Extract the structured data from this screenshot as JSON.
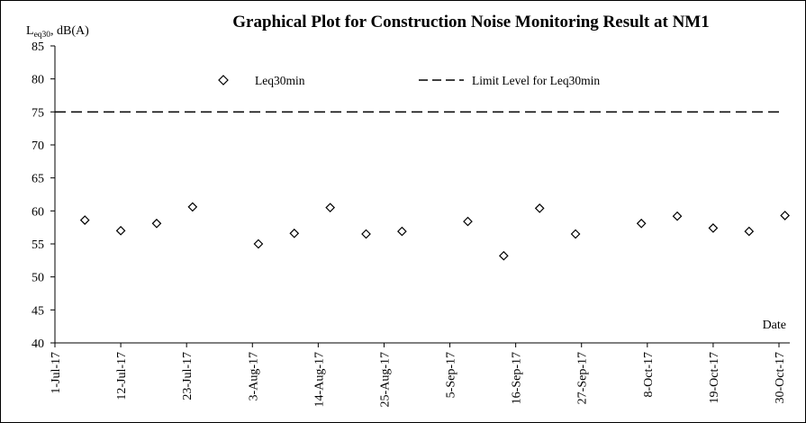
{
  "chart_data": {
    "type": "scatter",
    "title": "Graphical Plot for Construction Noise Monitoring Result at NM1",
    "ylabel": {
      "main": "L",
      "sub": "eq30",
      "rest": ", dB(A)"
    },
    "xlabel": "Date",
    "ylim": [
      40,
      85
    ],
    "yticks": [
      40,
      45,
      50,
      55,
      60,
      65,
      70,
      75,
      80,
      85
    ],
    "xlim": [
      "2017-07-01",
      "2017-10-30"
    ],
    "xtick_dates": [
      "2017-07-01",
      "2017-07-12",
      "2017-07-23",
      "2017-08-03",
      "2017-08-14",
      "2017-08-25",
      "2017-09-05",
      "2017-09-16",
      "2017-09-27",
      "2017-10-08",
      "2017-10-19",
      "2017-10-30"
    ],
    "xtick_labels": [
      "1-Jul-17",
      "12-Jul-17",
      "23-Jul-17",
      "3-Aug-17",
      "14-Aug-17",
      "25-Aug-17",
      "5-Sep-17",
      "16-Sep-17",
      "27-Sep-17",
      "8-Oct-17",
      "19-Oct-17",
      "30-Oct-17"
    ],
    "grid": false,
    "legend": {
      "placement": "top-center"
    },
    "series": [
      {
        "name": "Leq30min",
        "marker": "diamond-open",
        "color": "#000000",
        "points": [
          {
            "x": "2017-07-06",
            "y": 58.6
          },
          {
            "x": "2017-07-12",
            "y": 57.0
          },
          {
            "x": "2017-07-18",
            "y": 58.1
          },
          {
            "x": "2017-07-24",
            "y": 60.6
          },
          {
            "x": "2017-08-04",
            "y": 55.0
          },
          {
            "x": "2017-08-10",
            "y": 56.6
          },
          {
            "x": "2017-08-16",
            "y": 60.5
          },
          {
            "x": "2017-08-22",
            "y": 56.5
          },
          {
            "x": "2017-08-28",
            "y": 56.9
          },
          {
            "x": "2017-09-08",
            "y": 58.4
          },
          {
            "x": "2017-09-14",
            "y": 53.2
          },
          {
            "x": "2017-09-20",
            "y": 60.4
          },
          {
            "x": "2017-09-26",
            "y": 56.5
          },
          {
            "x": "2017-10-07",
            "y": 58.1
          },
          {
            "x": "2017-10-13",
            "y": 59.2
          },
          {
            "x": "2017-10-19",
            "y": 57.4
          },
          {
            "x": "2017-10-25",
            "y": 56.9
          },
          {
            "x": "2017-10-31",
            "y": 59.3
          }
        ]
      },
      {
        "name": "Limit Level for Leq30min",
        "style": "dashed-line",
        "color": "#000000",
        "y": 75
      }
    ]
  }
}
